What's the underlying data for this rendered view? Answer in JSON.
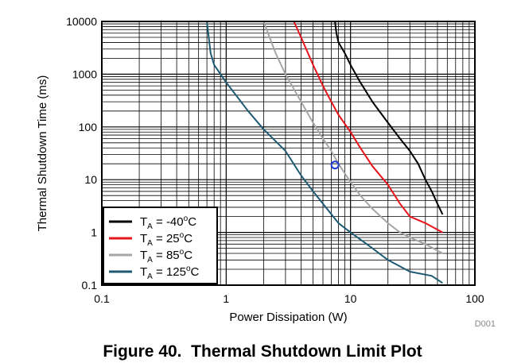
{
  "chart_data": {
    "type": "line",
    "title": "",
    "xlabel": "Power Dissipation (W)",
    "ylabel": "Thermal Shutdown Time (ms)",
    "xscale": "log",
    "yscale": "log",
    "xlim": [
      0.1,
      100
    ],
    "ylim": [
      0.1,
      10000
    ],
    "x_ticks": [
      "0.1",
      "1",
      "10",
      "100"
    ],
    "y_ticks": [
      "0.1",
      "1",
      "10",
      "100",
      "1000",
      "10000"
    ],
    "grid": true,
    "legend": "bottom-left",
    "figure_id": "D001",
    "caption": "Figure 40.  Thermal Shutdown Limit Plot",
    "series": [
      {
        "name_prefix": "T",
        "name_sub": "A",
        "name_value": " = -40",
        "name_sup": "o",
        "name_unit": "C",
        "color": "#000000",
        "points": [
          [
            7.5,
            10000
          ],
          [
            7.7,
            6000
          ],
          [
            8.0,
            4000
          ],
          [
            9.0,
            2500
          ],
          [
            10.0,
            1500
          ],
          [
            12.0,
            700
          ],
          [
            15.0,
            300
          ],
          [
            20.0,
            120
          ],
          [
            25.0,
            60
          ],
          [
            30.0,
            35
          ],
          [
            35.0,
            20
          ],
          [
            40.0,
            10
          ],
          [
            45.0,
            6
          ],
          [
            50.0,
            3.5
          ],
          [
            55.0,
            2.2
          ]
        ]
      },
      {
        "name_prefix": "T",
        "name_sub": "A",
        "name_value": " = 25",
        "name_sup": "o",
        "name_unit": "C",
        "color": "#e8141b",
        "points": [
          [
            3.5,
            10000
          ],
          [
            4.0,
            5000
          ],
          [
            5.0,
            1500
          ],
          [
            6.0,
            600
          ],
          [
            7.0,
            300
          ],
          [
            8.0,
            170
          ],
          [
            10.0,
            80
          ],
          [
            12.0,
            40
          ],
          [
            15.0,
            18
          ],
          [
            20.0,
            8
          ],
          [
            25.0,
            3.5
          ],
          [
            30.0,
            2.0
          ],
          [
            40.0,
            1.5
          ],
          [
            55.0,
            1.0
          ]
        ]
      },
      {
        "name_prefix": "T",
        "name_sub": "A",
        "name_value": " = 85",
        "name_sup": "o",
        "name_unit": "C",
        "color": "#a6a6a6",
        "points": [
          [
            2.0,
            10000
          ],
          [
            2.5,
            2500
          ],
          [
            3.0,
            1000
          ],
          [
            4.0,
            300
          ],
          [
            5.0,
            120
          ],
          [
            6.0,
            60
          ],
          [
            7.0,
            35
          ],
          [
            8.0,
            20
          ],
          [
            10.0,
            9
          ],
          [
            12.0,
            5
          ],
          [
            15.0,
            2.8
          ],
          [
            20.0,
            1.5
          ],
          [
            25.0,
            1.0
          ],
          [
            30.0,
            0.8
          ],
          [
            40.0,
            0.6
          ],
          [
            55.0,
            0.4
          ]
        ]
      },
      {
        "name_prefix": "T",
        "name_sub": "A",
        "name_value": " = 125",
        "name_sup": "o",
        "name_unit": "C",
        "color": "#1f5a73",
        "points": [
          [
            0.7,
            10000
          ],
          [
            0.75,
            2500
          ],
          [
            0.8,
            1500
          ],
          [
            1.0,
            700
          ],
          [
            1.5,
            200
          ],
          [
            2.0,
            90
          ],
          [
            3.0,
            35
          ],
          [
            4.0,
            12
          ],
          [
            5.0,
            6
          ],
          [
            6.0,
            3.5
          ],
          [
            8.0,
            1.5
          ],
          [
            10.0,
            1.0
          ],
          [
            15.0,
            0.5
          ],
          [
            20.0,
            0.3
          ],
          [
            30.0,
            0.18
          ],
          [
            45.0,
            0.15
          ],
          [
            55.0,
            0.11
          ]
        ]
      }
    ],
    "marker": {
      "x": 7.5,
      "y": 19,
      "color": "#1f3bd6"
    }
  }
}
